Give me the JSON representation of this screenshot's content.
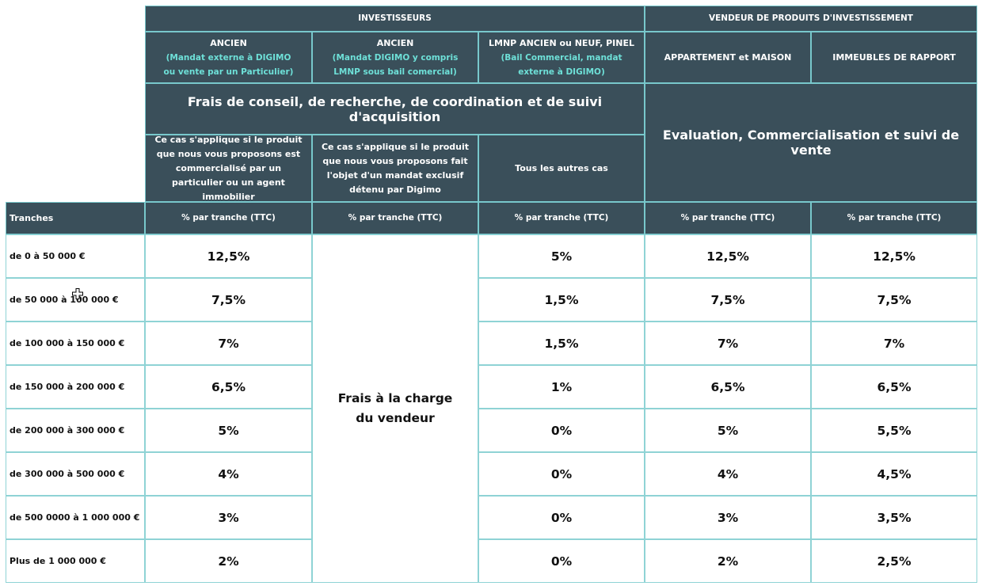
{
  "header": {
    "investisseurs": "INVESTISSEURS",
    "vendeur": "VENDEUR DE PRODUITS D'INVESTISSEMENT"
  },
  "columns": [
    {
      "title": "ANCIEN",
      "sub": "(Mandat externe à DIGIMO ou vente par un Particulier)"
    },
    {
      "title": "ANCIEN",
      "sub": "(Mandat DIGIMO y compris LMNP sous bail comercial)"
    },
    {
      "title": "LMNP ANCIEN ou NEUF, PINEL",
      "sub": "(Bail Commercial, mandat externe à DIGIMO)"
    },
    {
      "title": "APPARTEMENT et MAISON",
      "sub": ""
    },
    {
      "title": "IMMEUBLES DE RAPPORT",
      "sub": ""
    }
  ],
  "section_titles": {
    "acquisition": "Frais de conseil, de recherche, de coordination et de suivi d'acquisition",
    "vente": "Evaluation, Commercialisation et suivi de vente"
  },
  "notes": [
    "Ce cas s'applique si le produit que nous vous proposons est commercialisé par un particulier ou un agent immobilier",
    "Ce cas s'applique si le produit que nous vous proposons fait l'objet d'un mandat exclusif détenu par Digimo",
    "Tous les autres cas"
  ],
  "table": {
    "tranches_header": "Tranches",
    "pct_header": "% par tranche (TTC)",
    "merged_line1": "Frais à la charge",
    "merged_line2": "du vendeur",
    "rows": [
      {
        "tranche": "de 0 à 50 000 €",
        "c1": "12,5%",
        "c3": "5%",
        "c4": "12,5%",
        "c5": "12,5%"
      },
      {
        "tranche": "de 50 000 à 100 000 €",
        "c1": "7,5%",
        "c3": "1,5%",
        "c4": "7,5%",
        "c5": "7,5%"
      },
      {
        "tranche": "de 100 000 à 150 000 €",
        "c1": "7%",
        "c3": "1,5%",
        "c4": "7%",
        "c5": "7%"
      },
      {
        "tranche": "de 150 000 à  200 000 €",
        "c1": "6,5%",
        "c3": "1%",
        "c4": "6,5%",
        "c5": "6,5%"
      },
      {
        "tranche": "de 200 000 à 300 000 €",
        "c1": "5%",
        "c3": "0%",
        "c4": "5%",
        "c5": "5,5%"
      },
      {
        "tranche": "de 300 000 à 500 000 €",
        "c1": "4%",
        "c3": "0%",
        "c4": "4%",
        "c5": "4,5%"
      },
      {
        "tranche": "de 500 0000 à 1 000 000 €",
        "c1": "3%",
        "c3": "0%",
        "c4": "3%",
        "c5": "3,5%"
      },
      {
        "tranche": "Plus de 1 000 000 €",
        "c1": "2%",
        "c3": "0%",
        "c4": "2%",
        "c5": "2,5%"
      }
    ]
  }
}
